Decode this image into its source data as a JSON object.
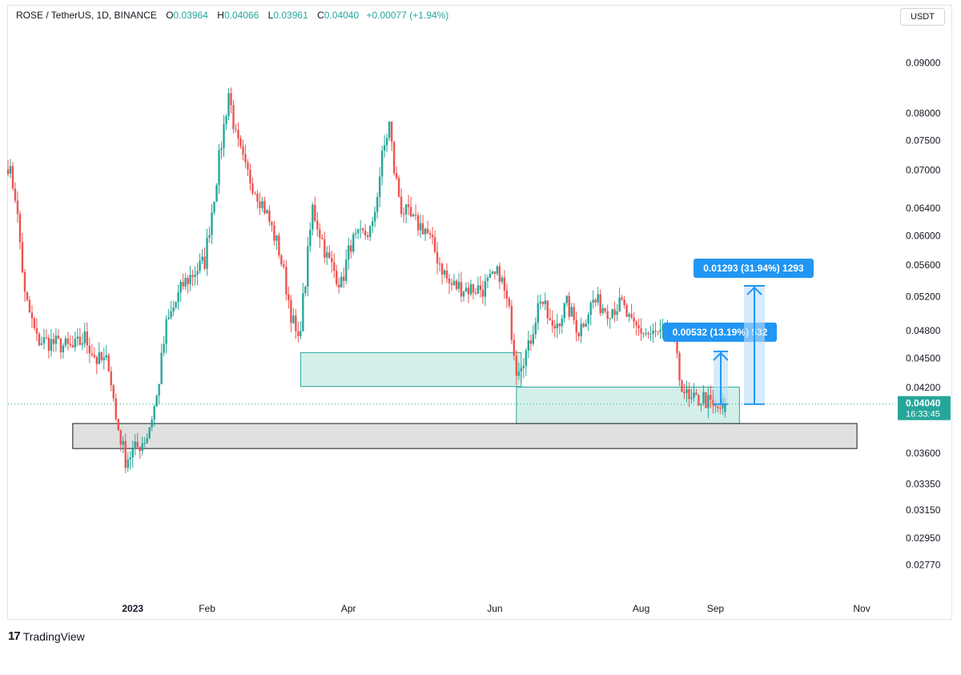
{
  "header": {
    "symbol": "ROSE / TetherUS, 1D, BINANCE",
    "o_label": "O",
    "o_value": "0.03964",
    "h_label": "H",
    "h_value": "0.04066",
    "l_label": "L",
    "l_value": "0.03961",
    "c_label": "C",
    "c_value": "0.04040",
    "change": "+0.00077 (+1.94%)"
  },
  "currency_button": "USDT",
  "footer": {
    "brand": "TradingView",
    "logo_mark": "17"
  },
  "colors": {
    "up": "#26a69a",
    "down": "#ef5350",
    "zone_fill": "#d4efe9",
    "zone_border": "#26a69a",
    "support_fill": "#e0e0e0",
    "measure": "#2196f3",
    "price_label": "#26a69a"
  },
  "measurements": [
    {
      "label": "0.00532 (13.19%) 532",
      "from": 0.0404,
      "to": 0.04572
    },
    {
      "label": "0.01293 (31.94%) 1293",
      "from": 0.0404,
      "to": 0.05333
    }
  ],
  "price_label": {
    "price": "0.04040",
    "countdown": "16:33:45"
  },
  "chart_data": {
    "type": "candlestick",
    "title": "ROSE / TetherUS, 1D, BINANCE",
    "y_scale": "log",
    "ylim": [
      0.0262,
      0.0968
    ],
    "y_ticks": [
      0.09,
      0.08,
      0.075,
      0.07,
      0.064,
      0.06,
      0.056,
      0.052,
      0.048,
      0.045,
      0.042,
      0.036,
      0.0335,
      0.0315,
      0.0295,
      0.0277
    ],
    "y_tick_labels": [
      "0.09000",
      "0.08000",
      "0.07500",
      "0.07000",
      "0.06400",
      "0.06000",
      "0.05600",
      "0.05200",
      "0.04800",
      "0.04500",
      "0.04200",
      "0.03600",
      "0.03350",
      "0.03150",
      "0.02950",
      "0.02770"
    ],
    "xlim": [
      "2022-11-10",
      "2023-11-15"
    ],
    "x_ticks": [
      "2023-01-01",
      "2023-02-01",
      "2023-04-01",
      "2023-06-01",
      "2023-08-01",
      "2023-09-01",
      "2023-11-01"
    ],
    "x_tick_labels": [
      "2023",
      "Feb",
      "Apr",
      "Jun",
      "Aug",
      "Sep",
      "Nov"
    ],
    "close_anchors": [
      [
        "2022-11-10",
        0.071
      ],
      [
        "2022-11-13",
        0.066
      ],
      [
        "2022-11-17",
        0.052
      ],
      [
        "2022-11-22",
        0.047
      ],
      [
        "2022-12-01",
        0.0465
      ],
      [
        "2022-12-07",
        0.046
      ],
      [
        "2022-12-12",
        0.0472
      ],
      [
        "2022-12-17",
        0.0448
      ],
      [
        "2022-12-22",
        0.0445
      ],
      [
        "2022-12-25",
        0.039
      ],
      [
        "2022-12-29",
        0.0355
      ],
      [
        "2023-01-03",
        0.0365
      ],
      [
        "2023-01-07",
        0.0375
      ],
      [
        "2023-01-11",
        0.041
      ],
      [
        "2023-01-15",
        0.0485
      ],
      [
        "2023-01-22",
        0.0535
      ],
      [
        "2023-01-31",
        0.0565
      ],
      [
        "2023-02-04",
        0.066
      ],
      [
        "2023-02-08",
        0.0775
      ],
      [
        "2023-02-10",
        0.084
      ],
      [
        "2023-02-13",
        0.0755
      ],
      [
        "2023-02-17",
        0.07
      ],
      [
        "2023-02-25",
        0.064
      ],
      [
        "2023-03-03",
        0.058
      ],
      [
        "2023-03-08",
        0.05
      ],
      [
        "2023-03-11",
        0.0465
      ],
      [
        "2023-03-14",
        0.054
      ],
      [
        "2023-03-17",
        0.064
      ],
      [
        "2023-03-23",
        0.057
      ],
      [
        "2023-03-29",
        0.0535
      ],
      [
        "2023-04-02",
        0.059
      ],
      [
        "2023-04-07",
        0.06
      ],
      [
        "2023-04-11",
        0.061
      ],
      [
        "2023-04-15",
        0.072
      ],
      [
        "2023-04-18",
        0.078
      ],
      [
        "2023-04-20",
        0.07
      ],
      [
        "2023-04-23",
        0.064
      ],
      [
        "2023-04-28",
        0.062
      ],
      [
        "2023-05-03",
        0.061
      ],
      [
        "2023-05-08",
        0.057
      ],
      [
        "2023-05-13",
        0.0535
      ],
      [
        "2023-05-20",
        0.053
      ],
      [
        "2023-05-27",
        0.053
      ],
      [
        "2023-06-03",
        0.055
      ],
      [
        "2023-06-07",
        0.05
      ],
      [
        "2023-06-10",
        0.044
      ],
      [
        "2023-06-15",
        0.046
      ],
      [
        "2023-06-20",
        0.052
      ],
      [
        "2023-06-25",
        0.048
      ],
      [
        "2023-07-01",
        0.051
      ],
      [
        "2023-07-06",
        0.048
      ],
      [
        "2023-07-12",
        0.0515
      ],
      [
        "2023-07-18",
        0.0505
      ],
      [
        "2023-07-24",
        0.051
      ],
      [
        "2023-07-28",
        0.0485
      ],
      [
        "2023-08-05",
        0.0475
      ],
      [
        "2023-08-14",
        0.0478
      ],
      [
        "2023-08-17",
        0.043
      ],
      [
        "2023-08-21",
        0.0405
      ],
      [
        "2023-08-27",
        0.041
      ],
      [
        "2023-09-01",
        0.0398
      ],
      [
        "2023-09-05",
        0.0404
      ]
    ]
  },
  "zones": [
    {
      "name": "demand-zone-1",
      "start": "2023-03-12",
      "end": "2023-06-12",
      "low": 0.0421,
      "high": 0.0456
    },
    {
      "name": "demand-zone-2",
      "start": "2023-06-10",
      "end": "2023-09-11",
      "low": 0.0386,
      "high": 0.04205
    },
    {
      "name": "support-zone",
      "start": "2022-12-07",
      "end": "2023-10-30",
      "low": 0.0364,
      "high": 0.0386
    }
  ]
}
